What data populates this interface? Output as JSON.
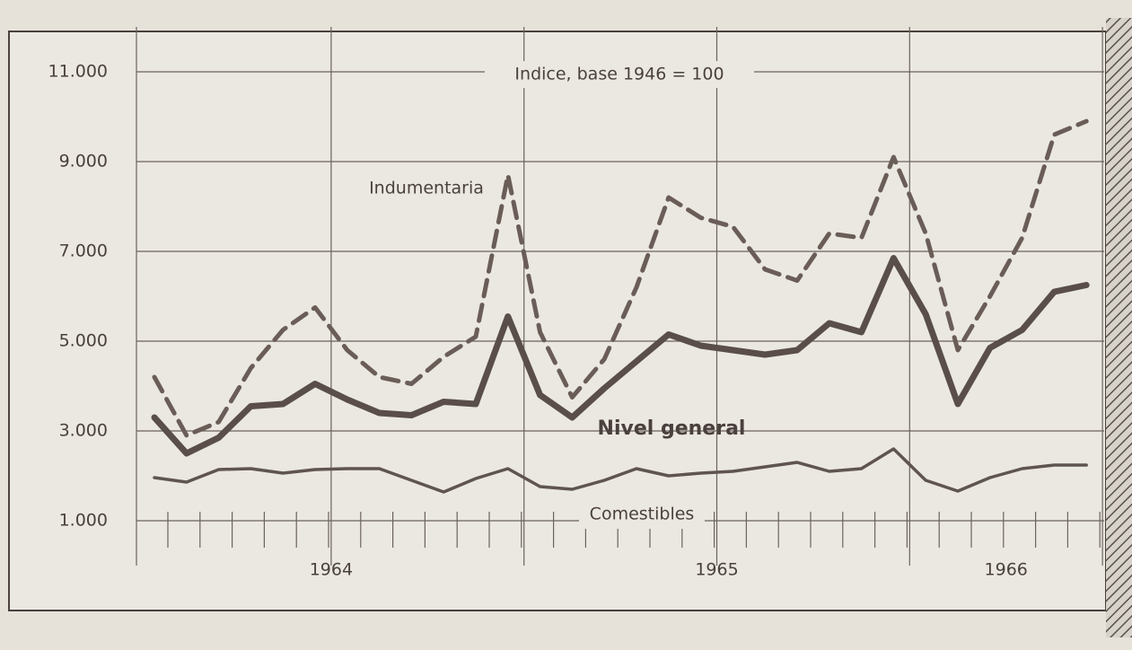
{
  "chart_data": {
    "type": "line",
    "title": "Indice, base 1946 = 100",
    "categories": [
      null,
      null,
      null,
      null,
      null,
      null,
      null,
      null,
      null,
      null,
      null,
      null,
      null,
      null,
      null,
      null,
      null,
      null,
      null,
      null,
      null,
      null,
      null,
      null,
      null,
      null,
      null,
      null,
      null,
      null
    ],
    "year_labels": [
      "1964",
      "1965",
      "1966"
    ],
    "ylim": [
      1000,
      12000
    ],
    "yticks": [
      {
        "value": 1000,
        "label": "1.000"
      },
      {
        "value": 3000,
        "label": "3.000"
      },
      {
        "value": 5000,
        "label": "5.000"
      },
      {
        "value": 7000,
        "label": "7.000"
      },
      {
        "value": 9000,
        "label": "9.000"
      },
      {
        "value": 11000,
        "label": "11.000"
      }
    ],
    "grid": true,
    "series": [
      {
        "name": "Indumentaria",
        "color": "#6a5d58",
        "style": "dashed",
        "values": [
          4200,
          2900,
          3200,
          4400,
          5250,
          5750,
          4800,
          4200,
          4050,
          4650,
          5100,
          8700,
          5200,
          3750,
          4600,
          6200,
          8200,
          7750,
          7550,
          6600,
          6350,
          7400,
          7300,
          9100,
          7400,
          4800,
          6000,
          7300,
          9600,
          9900
        ]
      },
      {
        "name": "Nivel general",
        "color": "#5a4e4a",
        "style": "bold",
        "values": [
          3300,
          2500,
          2850,
          3550,
          3600,
          4050,
          3700,
          3400,
          3350,
          3650,
          3600,
          5550,
          3800,
          3300,
          3950,
          4550,
          5150,
          4900,
          4800,
          4700,
          4800,
          5400,
          5200,
          6850,
          5600,
          3600,
          4850,
          5250,
          6100,
          6250
        ]
      },
      {
        "name": "Comestibles",
        "color": "#5f5450",
        "style": "solid",
        "values": [
          1960,
          1860,
          2140,
          2160,
          2060,
          2140,
          2160,
          2160,
          1900,
          1640,
          1940,
          2160,
          1760,
          1700,
          1900,
          2160,
          2000,
          2060,
          2100,
          2200,
          2300,
          2100,
          2160,
          2600,
          1900,
          1660,
          1960,
          2160,
          2240,
          2240
        ]
      }
    ]
  }
}
